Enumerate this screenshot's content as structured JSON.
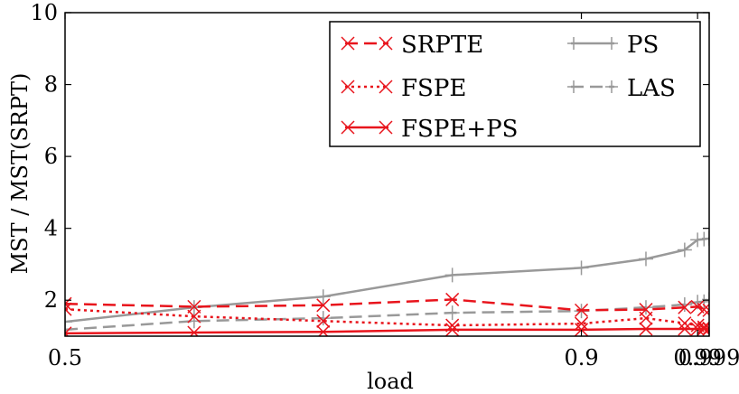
{
  "chart_data": {
    "type": "line",
    "title": "",
    "xlabel": "load",
    "ylabel": "MST / MST(SRPT)",
    "ylim": [
      1,
      10
    ],
    "yticks": [
      2,
      4,
      6,
      8,
      10
    ],
    "x_tick_labels": [
      "0.5",
      "0.9",
      "0.99",
      "0.999"
    ],
    "x_positions": [
      0.5,
      0.6,
      0.7,
      0.8,
      0.9,
      0.95,
      0.98,
      0.99,
      0.995,
      0.999
    ],
    "x_tick_positions": [
      0.5,
      0.9,
      0.99,
      0.999
    ],
    "grid": false,
    "legend_position": "top-right",
    "series": [
      {
        "name": "SRPTE",
        "color": "#e8141c",
        "dash": "dashed",
        "marker": "x",
        "values": [
          1.9,
          1.82,
          1.86,
          2.02,
          1.72,
          1.74,
          1.8,
          1.82,
          1.74,
          1.72
        ]
      },
      {
        "name": "FSPE",
        "color": "#e8141c",
        "dash": "dotted",
        "marker": "x",
        "values": [
          1.75,
          1.55,
          1.42,
          1.3,
          1.35,
          1.5,
          1.36,
          1.3,
          1.25,
          1.22
        ]
      },
      {
        "name": "FSPE+PS",
        "color": "#e8141c",
        "dash": "solid",
        "marker": "x",
        "values": [
          1.08,
          1.1,
          1.12,
          1.18,
          1.18,
          1.2,
          1.2,
          1.2,
          1.2,
          1.2
        ]
      },
      {
        "name": "PS",
        "color": "#999999",
        "dash": "solid",
        "marker": "+",
        "values": [
          1.4,
          1.8,
          2.1,
          2.7,
          2.9,
          3.15,
          3.4,
          3.68,
          3.7,
          3.72
        ]
      },
      {
        "name": "LAS",
        "color": "#999999",
        "dash": "dashed",
        "marker": "+",
        "values": [
          1.18,
          1.42,
          1.5,
          1.65,
          1.7,
          1.8,
          1.88,
          1.95,
          1.96,
          2.02
        ]
      }
    ]
  }
}
